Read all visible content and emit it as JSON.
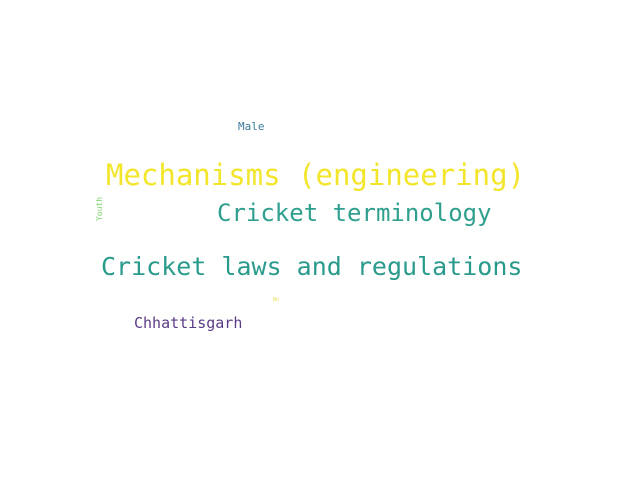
{
  "words": [
    {
      "text": "Male",
      "color": "#3b7a9a"
    },
    {
      "text": "Mechanisms (engineering)",
      "color": "#f2e52a"
    },
    {
      "text": "Youth",
      "color": "#7dd36b"
    },
    {
      "text": "Cricket terminology",
      "color": "#2f9f8e"
    },
    {
      "text": "Cricket laws and regulations",
      "color": "#2a9a8c"
    },
    {
      "text": "Chhattisgarh",
      "color": "#5a3b86"
    },
    {
      "text": "Bo",
      "color": "#e6df4a"
    }
  ]
}
